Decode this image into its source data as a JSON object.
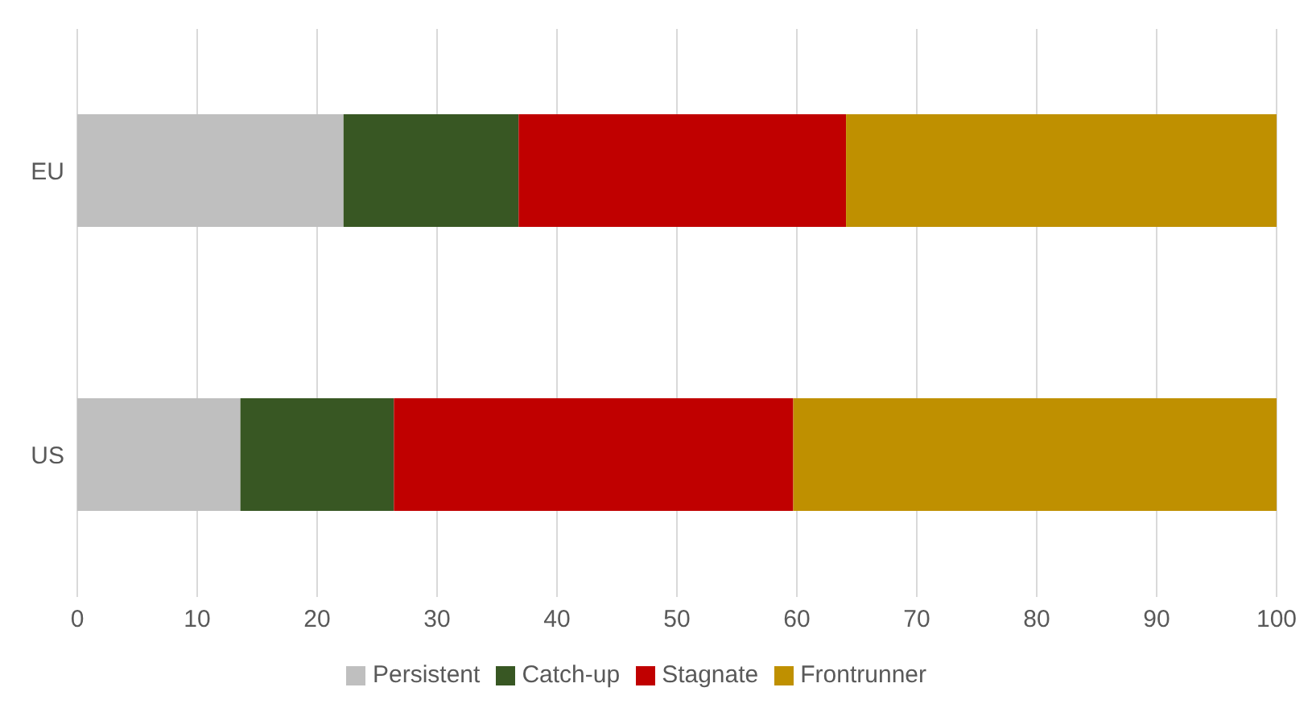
{
  "chart_data": {
    "type": "bar",
    "orientation": "horizontal",
    "stacked": true,
    "categories": [
      "EU",
      "US"
    ],
    "series": [
      {
        "name": "Persistent",
        "color": "#bfbfbf",
        "values": [
          22.2,
          13.6
        ]
      },
      {
        "name": "Catch-up",
        "color": "#385723",
        "values": [
          14.6,
          12.8
        ]
      },
      {
        "name": "Stagnate",
        "color": "#c00000",
        "values": [
          27.3,
          33.3
        ]
      },
      {
        "name": "Frontrunner",
        "color": "#bf9000",
        "values": [
          35.9,
          40.3
        ]
      }
    ],
    "xlim": [
      0,
      100
    ],
    "xticks": [
      0,
      10,
      20,
      30,
      40,
      50,
      60,
      70,
      80,
      90,
      100
    ],
    "grid": "x",
    "legend": "bottom"
  }
}
